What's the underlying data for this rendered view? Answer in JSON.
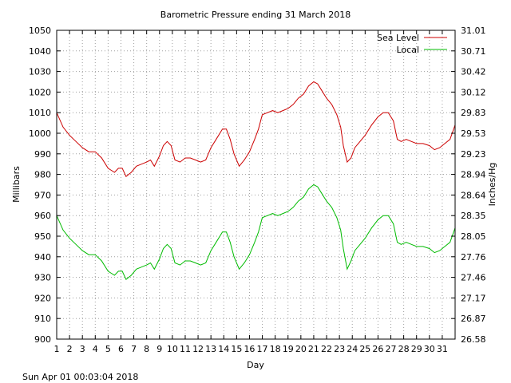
{
  "chart_data": {
    "type": "line",
    "title": "Barometric Pressure ending 31 March 2018",
    "xlabel": "Day",
    "ylabel": "Millibars",
    "y2label": "Inches/Hg",
    "footer_timestamp": "Sun Apr 01 00:03:04 2018",
    "xlim": [
      1,
      32
    ],
    "ylim": [
      900,
      1050
    ],
    "y2lim": [
      26.58,
      31.01
    ],
    "x_ticks": [
      1,
      2,
      3,
      4,
      5,
      6,
      7,
      8,
      9,
      10,
      11,
      12,
      13,
      14,
      15,
      16,
      17,
      18,
      19,
      20,
      21,
      22,
      23,
      24,
      25,
      26,
      27,
      28,
      29,
      30,
      31
    ],
    "y_ticks": [
      900,
      910,
      920,
      930,
      940,
      950,
      960,
      970,
      980,
      990,
      1000,
      1010,
      1020,
      1030,
      1040,
      1050
    ],
    "y2_ticks": [
      "26.58",
      "26.87",
      "27.17",
      "27.46",
      "27.76",
      "28.05",
      "28.35",
      "28.64",
      "28.94",
      "29.23",
      "29.53",
      "29.83",
      "30.12",
      "30.42",
      "30.71",
      "31.01"
    ],
    "grid": true,
    "legend_position": "top-right",
    "series": [
      {
        "name": "Sea Level",
        "color": "#cc0000",
        "points": [
          [
            1.0,
            1010
          ],
          [
            1.5,
            1003
          ],
          [
            2.0,
            999
          ],
          [
            2.5,
            996
          ],
          [
            3.0,
            993
          ],
          [
            3.5,
            991
          ],
          [
            4.0,
            991
          ],
          [
            4.5,
            988
          ],
          [
            5.0,
            983
          ],
          [
            5.5,
            981
          ],
          [
            5.8,
            983
          ],
          [
            6.1,
            983
          ],
          [
            6.4,
            979
          ],
          [
            6.8,
            981
          ],
          [
            7.2,
            984
          ],
          [
            7.6,
            985
          ],
          [
            8.0,
            986
          ],
          [
            8.3,
            987
          ],
          [
            8.6,
            984
          ],
          [
            9.0,
            989
          ],
          [
            9.3,
            994
          ],
          [
            9.6,
            996
          ],
          [
            9.9,
            994
          ],
          [
            10.2,
            987
          ],
          [
            10.6,
            986
          ],
          [
            11.0,
            988
          ],
          [
            11.4,
            988
          ],
          [
            11.8,
            987
          ],
          [
            12.2,
            986
          ],
          [
            12.6,
            987
          ],
          [
            13.0,
            993
          ],
          [
            13.5,
            998
          ],
          [
            13.9,
            1002
          ],
          [
            14.2,
            1002
          ],
          [
            14.5,
            997
          ],
          [
            14.8,
            990
          ],
          [
            15.2,
            984
          ],
          [
            15.6,
            987
          ],
          [
            16.0,
            991
          ],
          [
            16.4,
            997
          ],
          [
            16.7,
            1002
          ],
          [
            17.0,
            1009
          ],
          [
            17.4,
            1010
          ],
          [
            17.8,
            1011
          ],
          [
            18.2,
            1010
          ],
          [
            18.6,
            1011
          ],
          [
            19.0,
            1012
          ],
          [
            19.4,
            1014
          ],
          [
            19.8,
            1017
          ],
          [
            20.2,
            1019
          ],
          [
            20.6,
            1023
          ],
          [
            21.0,
            1025
          ],
          [
            21.3,
            1024
          ],
          [
            21.6,
            1021
          ],
          [
            22.0,
            1017
          ],
          [
            22.4,
            1014
          ],
          [
            22.8,
            1009
          ],
          [
            23.1,
            1003
          ],
          [
            23.3,
            994
          ],
          [
            23.6,
            986
          ],
          [
            23.9,
            988
          ],
          [
            24.2,
            993
          ],
          [
            24.6,
            996
          ],
          [
            25.0,
            999
          ],
          [
            25.5,
            1004
          ],
          [
            26.0,
            1008
          ],
          [
            26.4,
            1010
          ],
          [
            26.8,
            1010
          ],
          [
            27.2,
            1006
          ],
          [
            27.5,
            997
          ],
          [
            27.8,
            996
          ],
          [
            28.2,
            997
          ],
          [
            28.6,
            996
          ],
          [
            29.0,
            995
          ],
          [
            29.5,
            995
          ],
          [
            30.0,
            994
          ],
          [
            30.4,
            992
          ],
          [
            30.8,
            993
          ],
          [
            31.2,
            995
          ],
          [
            31.6,
            997
          ],
          [
            32.0,
            1004
          ]
        ]
      },
      {
        "name": "Local",
        "color": "#00bb00",
        "points": [
          [
            1.0,
            960
          ],
          [
            1.5,
            953
          ],
          [
            2.0,
            949
          ],
          [
            2.5,
            946
          ],
          [
            3.0,
            943
          ],
          [
            3.5,
            941
          ],
          [
            4.0,
            941
          ],
          [
            4.5,
            938
          ],
          [
            5.0,
            933
          ],
          [
            5.5,
            931
          ],
          [
            5.8,
            933
          ],
          [
            6.1,
            933
          ],
          [
            6.4,
            929
          ],
          [
            6.8,
            931
          ],
          [
            7.2,
            934
          ],
          [
            7.6,
            935
          ],
          [
            8.0,
            936
          ],
          [
            8.3,
            937
          ],
          [
            8.6,
            934
          ],
          [
            9.0,
            939
          ],
          [
            9.3,
            944
          ],
          [
            9.6,
            946
          ],
          [
            9.9,
            944
          ],
          [
            10.2,
            937
          ],
          [
            10.6,
            936
          ],
          [
            11.0,
            938
          ],
          [
            11.4,
            938
          ],
          [
            11.8,
            937
          ],
          [
            12.2,
            936
          ],
          [
            12.6,
            937
          ],
          [
            13.0,
            943
          ],
          [
            13.5,
            948
          ],
          [
            13.9,
            952
          ],
          [
            14.2,
            952
          ],
          [
            14.5,
            947
          ],
          [
            14.8,
            940
          ],
          [
            15.2,
            934
          ],
          [
            15.6,
            937
          ],
          [
            16.0,
            941
          ],
          [
            16.4,
            947
          ],
          [
            16.7,
            952
          ],
          [
            17.0,
            959
          ],
          [
            17.4,
            960
          ],
          [
            17.8,
            961
          ],
          [
            18.2,
            960
          ],
          [
            18.6,
            961
          ],
          [
            19.0,
            962
          ],
          [
            19.4,
            964
          ],
          [
            19.8,
            967
          ],
          [
            20.2,
            969
          ],
          [
            20.6,
            973
          ],
          [
            21.0,
            975
          ],
          [
            21.3,
            974
          ],
          [
            21.6,
            971
          ],
          [
            22.0,
            967
          ],
          [
            22.4,
            964
          ],
          [
            22.8,
            959
          ],
          [
            23.1,
            953
          ],
          [
            23.3,
            944
          ],
          [
            23.6,
            934
          ],
          [
            23.9,
            938
          ],
          [
            24.2,
            943
          ],
          [
            24.6,
            946
          ],
          [
            25.0,
            949
          ],
          [
            25.5,
            954
          ],
          [
            26.0,
            958
          ],
          [
            26.4,
            960
          ],
          [
            26.8,
            960
          ],
          [
            27.2,
            956
          ],
          [
            27.5,
            947
          ],
          [
            27.8,
            946
          ],
          [
            28.2,
            947
          ],
          [
            28.6,
            946
          ],
          [
            29.0,
            945
          ],
          [
            29.5,
            945
          ],
          [
            30.0,
            944
          ],
          [
            30.4,
            942
          ],
          [
            30.8,
            943
          ],
          [
            31.2,
            945
          ],
          [
            31.6,
            947
          ],
          [
            32.0,
            954
          ]
        ]
      }
    ]
  }
}
